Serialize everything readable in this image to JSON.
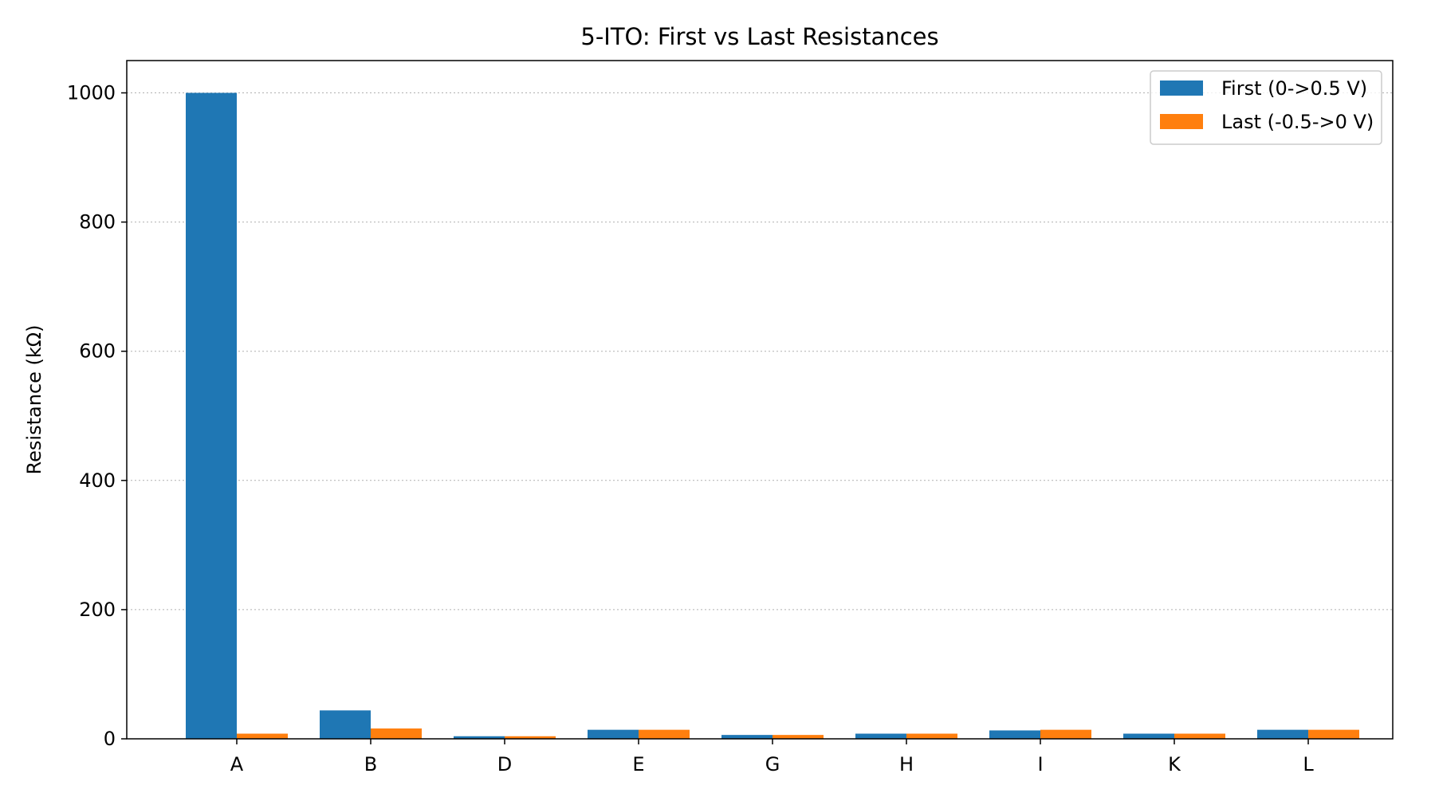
{
  "chart_data": {
    "type": "bar",
    "title": "5-ITO: First vs Last Resistances",
    "xlabel": "",
    "ylabel": "Resistance (kΩ)",
    "categories": [
      "A",
      "B",
      "D",
      "E",
      "G",
      "H",
      "I",
      "K",
      "L"
    ],
    "series": [
      {
        "name": "First (0->0.5 V)",
        "color": "#1f77b4",
        "values": [
          1000,
          44,
          4,
          14,
          6,
          8,
          13,
          8,
          14
        ]
      },
      {
        "name": "Last (-0.5->0 V)",
        "color": "#ff7f0e",
        "values": [
          8,
          16,
          4,
          14,
          6,
          8,
          14,
          8,
          14
        ]
      }
    ],
    "ylim": [
      0,
      1050
    ],
    "yticks": [
      0,
      200,
      400,
      600,
      800,
      1000
    ],
    "grid": true,
    "legend_position": "top-right"
  }
}
